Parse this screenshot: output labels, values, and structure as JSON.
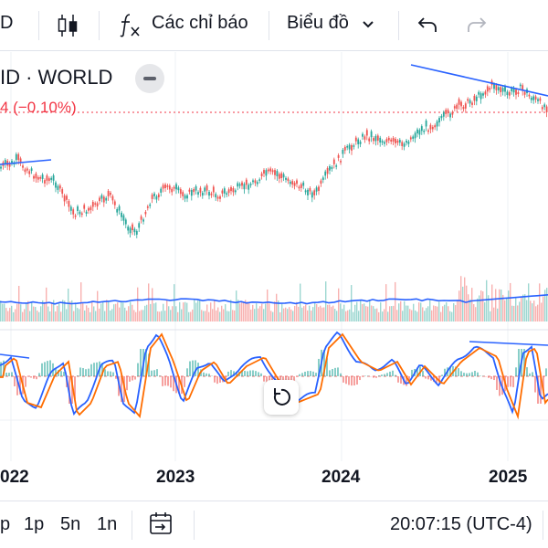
{
  "toolbar": {
    "symbol_fragment": "D",
    "indicators_label": "Các chỉ báo",
    "chart_type_label": "Biểu đồ"
  },
  "legend": {
    "title": "ID · WORLD",
    "change_fragment": "4 (−0.10%)"
  },
  "xaxis": {
    "labels": [
      "022",
      "2023",
      "2024",
      "2025"
    ]
  },
  "bottom": {
    "intervals": [
      "p",
      "1p",
      "5n",
      "1n"
    ],
    "time": "20:07:15 (UTC-4)"
  },
  "colors": {
    "up": "#26a69a",
    "down": "#ef5350",
    "blue": "#2962ff",
    "orange": "#ff6d00",
    "price_line": "#f23645"
  },
  "icons": [
    "candles-icon",
    "fx-icon",
    "chevron-down-icon",
    "undo-icon",
    "redo-icon",
    "minus-icon",
    "reset-icon",
    "goto-date-icon"
  ]
}
